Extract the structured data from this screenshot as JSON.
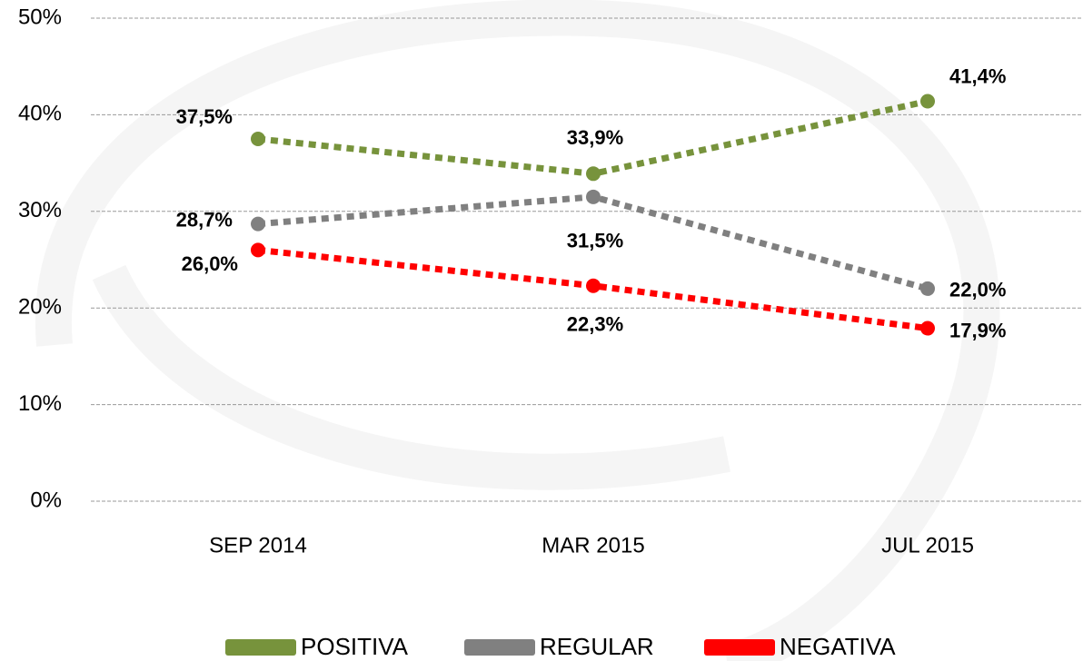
{
  "chart_data": {
    "type": "line",
    "categories": [
      "SEP 2014",
      "MAR 2015",
      "JUL 2015"
    ],
    "series": [
      {
        "name": "POSITIVA",
        "color": "#77933c",
        "values": [
          37.5,
          33.9,
          41.4
        ],
        "value_labels": [
          "37,5%",
          "33,9%",
          "41,4%"
        ]
      },
      {
        "name": "REGULAR",
        "color": "#808080",
        "values": [
          28.7,
          31.5,
          22.0
        ],
        "value_labels": [
          "28,7%",
          "31,5%",
          "22,0%"
        ]
      },
      {
        "name": "NEGATIVA",
        "color": "#ff0000",
        "values": [
          26.0,
          22.3,
          17.9
        ],
        "value_labels": [
          "26,0%",
          "22,3%",
          "17,9%"
        ]
      }
    ],
    "ylim": [
      0,
      50
    ],
    "yticks": [
      {
        "value": 0,
        "label": "0%"
      },
      {
        "value": 10,
        "label": "10%"
      },
      {
        "value": 20,
        "label": "20%"
      },
      {
        "value": 30,
        "label": "30%"
      },
      {
        "value": 40,
        "label": "40%"
      },
      {
        "value": 50,
        "label": "50%"
      }
    ],
    "grid": true,
    "legend": "bottom"
  }
}
